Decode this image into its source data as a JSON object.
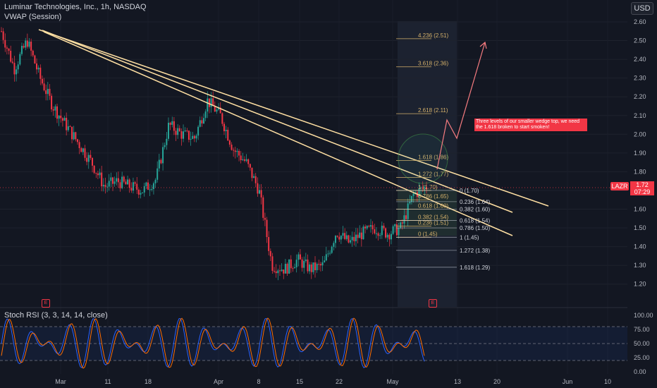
{
  "chart_header": {
    "title": "Luminar Technologies, Inc., 1h, NASDAQ",
    "indicator": "VWAP (Session)",
    "currency": "USD"
  },
  "stoch_label": "Stoch RSI (3, 3, 14, 14, close)",
  "symbol_tag": "LAZR",
  "last_price": "1.72",
  "countdown": "07:29",
  "annotation_text": "Three levels of our smaller wedge top, we need the 1.618 broken to start smoken!",
  "event_markers": [
    "E",
    "E"
  ],
  "colors": {
    "background": "#131722",
    "up": "#26a69a",
    "down": "#f23645",
    "trendline": "#ffe0a3",
    "fib": "#d4b06a",
    "stoch_k": "#2962ff",
    "stoch_d": "#ff6d00",
    "projection": "#f77c80"
  },
  "chart_data": {
    "type": "candlestick",
    "ylim": [
      1.15,
      2.62
    ],
    "y_ticks": [
      "2.60",
      "2.50",
      "2.40",
      "2.30",
      "2.20",
      "2.10",
      "2.00",
      "1.90",
      "1.80",
      "1.70",
      "1.60",
      "1.50",
      "1.40",
      "1.30",
      "1.20"
    ],
    "x_ticks": [
      "Mar",
      "11",
      "18",
      "Apr",
      "8",
      "15",
      "22",
      "May",
      "13",
      "20",
      "Jun",
      "10"
    ],
    "stoch_ticks": [
      "100.00",
      "75.00",
      "50.00",
      "25.00",
      "0.00"
    ],
    "fib_extension_levels": [
      {
        "label": "4.236 (2.51)",
        "price": 2.51
      },
      {
        "label": "3.618 (2.36)",
        "price": 2.36
      },
      {
        "label": "2.618 (2.11)",
        "price": 2.11
      },
      {
        "label": "1.618 (1.86)",
        "price": 1.86
      },
      {
        "label": "1.272 (1.77)",
        "price": 1.77
      },
      {
        "label": "1 (1.70)",
        "price": 1.7
      },
      {
        "label": "0.786 (1.65)",
        "price": 1.65
      },
      {
        "label": "0.618 (1.60)",
        "price": 1.6
      },
      {
        "label": "0.382 (1.54)",
        "price": 1.54
      },
      {
        "label": "0.236 (1.51)",
        "price": 1.51
      },
      {
        "label": "0 (1.45)",
        "price": 1.45
      }
    ],
    "fib_retracement_levels": [
      {
        "label": "0 (1.70)",
        "price": 1.7
      },
      {
        "label": "0.236 (1.64)",
        "price": 1.64
      },
      {
        "label": "0.382 (1.60)",
        "price": 1.6
      },
      {
        "label": "0.618 (1.54)",
        "price": 1.54
      },
      {
        "label": "0.786 (1.50)",
        "price": 1.5
      },
      {
        "label": "1 (1.45)",
        "price": 1.45
      },
      {
        "label": "1.272 (1.38)",
        "price": 1.38
      },
      {
        "label": "1.618 (1.29)",
        "price": 1.29
      }
    ],
    "price_path": [
      [
        "Feb 26",
        2.55
      ],
      [
        "Feb 28",
        2.35
      ],
      [
        "Mar 1",
        2.5
      ],
      [
        "Mar 4",
        2.3
      ],
      [
        "Mar 6",
        2.15
      ],
      [
        "Mar 8",
        2.05
      ],
      [
        "Mar 11",
        1.95
      ],
      [
        "Mar 13",
        1.85
      ],
      [
        "Mar 15",
        1.72
      ],
      [
        "Mar 18",
        1.75
      ],
      [
        "Mar 20",
        1.72
      ],
      [
        "Mar 22",
        1.7
      ],
      [
        "Mar 26",
        1.76
      ],
      [
        "Mar 28",
        2.05
      ],
      [
        "Mar 29",
        2.0
      ],
      [
        "Apr 2",
        1.98
      ],
      [
        "Apr 4",
        2.18
      ],
      [
        "Apr 5",
        2.1
      ],
      [
        "Apr 8",
        1.92
      ],
      [
        "Apr 9",
        1.85
      ],
      [
        "Apr 10",
        1.7
      ],
      [
        "Apr 11",
        1.3
      ],
      [
        "Apr 15",
        1.28
      ],
      [
        "Apr 17",
        1.33
      ],
      [
        "Apr 19",
        1.28
      ],
      [
        "Apr 22",
        1.3
      ],
      [
        "Apr 24",
        1.48
      ],
      [
        "Apr 25",
        1.42
      ],
      [
        "Apr 26",
        1.47
      ],
      [
        "Apr 29",
        1.5
      ],
      [
        "May 1",
        1.47
      ],
      [
        "May 3",
        1.5
      ],
      [
        "May 6",
        1.68
      ],
      [
        "May 7",
        1.72
      ]
    ]
  }
}
